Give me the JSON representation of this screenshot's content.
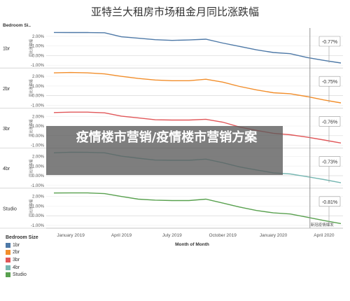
{
  "title": "亚特兰大租房市场租金月同比涨跌幅",
  "watermark": "疫情楼市营销/疫情楼市营销方案",
  "chart_data": {
    "type": "line",
    "x": [
      "2018-12",
      "2019-01",
      "2019-02",
      "2019-03",
      "2019-04",
      "2019-05",
      "2019-06",
      "2019-07",
      "2019-08",
      "2019-09",
      "2019-10",
      "2019-11",
      "2019-12",
      "2020-01",
      "2020-02",
      "2020-03",
      "2020-04",
      "2020-05"
    ],
    "xlabel": "Month of Month",
    "x_ticks": [
      "January 2019",
      "April 2019",
      "July 2019",
      "October 2019",
      "January 2020",
      "April 2020"
    ],
    "ylabel": "同比涨跌幅",
    "row_header": "Bedroom Si..",
    "ylim": [
      -1.0,
      2.5
    ],
    "y_ticks": [
      "2.00%",
      "1.00%",
      "0.00%",
      "-1.00%"
    ],
    "grid": true,
    "reference_line": {
      "x": "2020-03",
      "label": "新冠疫情爆发"
    },
    "series": [
      {
        "name": "1br",
        "color": "#4e79a7",
        "end_label": "-0.77%",
        "values": [
          2.4,
          2.39,
          2.39,
          2.37,
          1.95,
          1.8,
          1.65,
          1.58,
          1.62,
          1.7,
          1.3,
          0.95,
          0.6,
          0.32,
          0.2,
          -0.2,
          -0.5,
          -0.77
        ]
      },
      {
        "name": "2br",
        "color": "#f28e2b",
        "end_label": "-0.75%",
        "values": [
          2.36,
          2.4,
          2.36,
          2.25,
          2.0,
          1.78,
          1.62,
          1.55,
          1.55,
          1.7,
          1.4,
          0.95,
          0.6,
          0.3,
          0.2,
          -0.1,
          -0.45,
          -0.75
        ]
      },
      {
        "name": "3br",
        "color": "#e15759",
        "end_label": "-0.76%",
        "values": [
          2.4,
          2.44,
          2.44,
          2.37,
          2.03,
          1.85,
          1.65,
          1.62,
          1.62,
          1.7,
          1.4,
          0.9,
          0.55,
          0.25,
          0.1,
          -0.15,
          -0.45,
          -0.76
        ]
      },
      {
        "name": "4br",
        "color": "#76b7b2",
        "end_label": "-0.73%",
        "values": [
          2.38,
          2.44,
          2.43,
          2.38,
          2.03,
          1.82,
          1.62,
          1.6,
          1.6,
          1.72,
          1.35,
          0.92,
          0.6,
          0.3,
          0.18,
          -0.1,
          -0.4,
          -0.73
        ]
      },
      {
        "name": "Studio",
        "color": "#59a14f",
        "end_label": "-0.81%",
        "values": [
          2.36,
          2.37,
          2.37,
          2.3,
          2.0,
          1.72,
          1.62,
          1.58,
          1.58,
          1.72,
          1.32,
          0.9,
          0.55,
          0.3,
          0.18,
          -0.15,
          -0.5,
          -0.81
        ]
      }
    ],
    "legend": {
      "title": "Bedroom Size",
      "position": "bottom-left"
    }
  }
}
